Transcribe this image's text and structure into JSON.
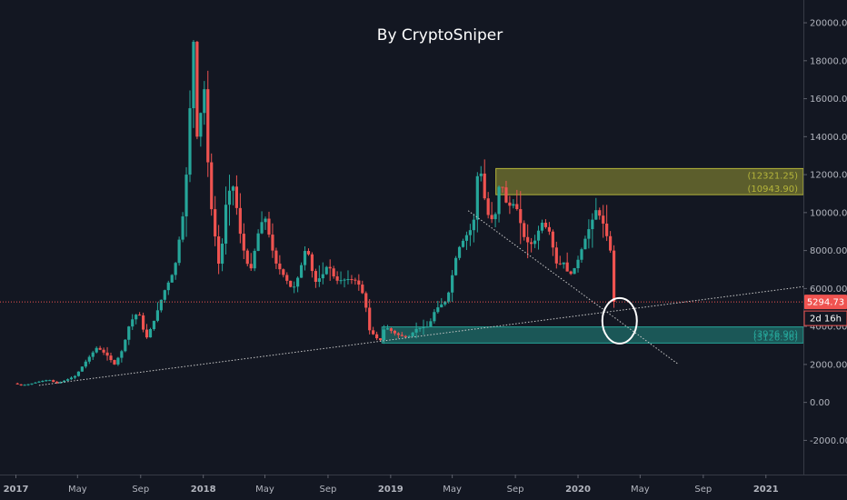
{
  "chart_data": {
    "type": "candlestick",
    "title": "By CryptoSniper",
    "y_axis": {
      "ticks": [
        20000,
        18000,
        16000,
        14000,
        12000,
        10000,
        8000,
        6000,
        4000,
        2000,
        0,
        -2000
      ],
      "tick_labels": [
        "20000.00",
        "18000.00",
        "16000.00",
        "14000.00",
        "12000.00",
        "10000.00",
        "8000.00",
        "6000.00",
        "4000.00",
        "2000.00",
        "0.00",
        "-2000.00"
      ],
      "range": [
        -3800,
        21200
      ],
      "position": "right"
    },
    "x_axis": {
      "range": [
        "2016-12-01",
        "2021-03-15"
      ],
      "ticks": [
        {
          "date": "2017-01-01",
          "label": "2017",
          "bold": true
        },
        {
          "date": "2017-05-01",
          "label": "May",
          "bold": false
        },
        {
          "date": "2017-09-01",
          "label": "Sep",
          "bold": false
        },
        {
          "date": "2018-01-01",
          "label": "2018",
          "bold": true
        },
        {
          "date": "2018-05-01",
          "label": "May",
          "bold": false
        },
        {
          "date": "2018-09-01",
          "label": "Sep",
          "bold": false
        },
        {
          "date": "2019-01-01",
          "label": "2019",
          "bold": true
        },
        {
          "date": "2019-05-01",
          "label": "May",
          "bold": false
        },
        {
          "date": "2019-09-01",
          "label": "Sep",
          "bold": false
        },
        {
          "date": "2020-01-01",
          "label": "2020",
          "bold": true
        },
        {
          "date": "2020-05-01",
          "label": "May",
          "bold": false
        },
        {
          "date": "2020-09-01",
          "label": "Sep",
          "bold": false
        },
        {
          "date": "2021-01-01",
          "label": "2021",
          "bold": true
        }
      ]
    },
    "price_path": [
      [
        "2017-01-01",
        1000
      ],
      [
        "2017-01-15",
        900
      ],
      [
        "2017-02-01",
        970
      ],
      [
        "2017-02-20",
        1100
      ],
      [
        "2017-03-10",
        1200
      ],
      [
        "2017-03-25",
        1000
      ],
      [
        "2017-04-10",
        1150
      ],
      [
        "2017-05-01",
        1400
      ],
      [
        "2017-05-25",
        2300
      ],
      [
        "2017-06-12",
        2900
      ],
      [
        "2017-07-01",
        2500
      ],
      [
        "2017-07-16",
        2000
      ],
      [
        "2017-08-01",
        2800
      ],
      [
        "2017-08-15",
        4200
      ],
      [
        "2017-09-01",
        4800
      ],
      [
        "2017-09-15",
        3300
      ],
      [
        "2017-10-01",
        4300
      ],
      [
        "2017-10-20",
        5800
      ],
      [
        "2017-11-10",
        7000
      ],
      [
        "2017-11-30",
        10500
      ],
      [
        "2017-12-10",
        15500
      ],
      [
        "2017-12-17",
        19000
      ],
      [
        "2017-12-24",
        14000
      ],
      [
        "2018-01-07",
        16500
      ],
      [
        "2018-01-17",
        11000
      ],
      [
        "2018-02-06",
        6900
      ],
      [
        "2018-02-20",
        11000
      ],
      [
        "2018-03-05",
        11400
      ],
      [
        "2018-03-20",
        8500
      ],
      [
        "2018-04-06",
        6800
      ],
      [
        "2018-04-25",
        9300
      ],
      [
        "2018-05-05",
        9800
      ],
      [
        "2018-05-25",
        7400
      ],
      [
        "2018-06-15",
        6500
      ],
      [
        "2018-06-28",
        5900
      ],
      [
        "2018-07-10",
        6700
      ],
      [
        "2018-07-25",
        8300
      ],
      [
        "2018-08-10",
        6300
      ],
      [
        "2018-08-25",
        6700
      ],
      [
        "2018-09-05",
        7300
      ],
      [
        "2018-09-20",
        6400
      ],
      [
        "2018-10-15",
        6500
      ],
      [
        "2018-11-01",
        6400
      ],
      [
        "2018-11-15",
        5500
      ],
      [
        "2018-11-25",
        3800
      ],
      [
        "2018-12-15",
        3200
      ],
      [
        "2018-12-25",
        4000
      ],
      [
        "2019-01-15",
        3600
      ],
      [
        "2019-02-07",
        3400
      ],
      [
        "2019-02-25",
        3900
      ],
      [
        "2019-03-20",
        4000
      ],
      [
        "2019-04-02",
        4900
      ],
      [
        "2019-04-25",
        5400
      ],
      [
        "2019-05-15",
        8000
      ],
      [
        "2019-05-30",
        8700
      ],
      [
        "2019-06-15",
        9300
      ],
      [
        "2019-06-26",
        12900
      ],
      [
        "2019-07-05",
        11000
      ],
      [
        "2019-07-17",
        9500
      ],
      [
        "2019-07-30",
        10000
      ],
      [
        "2019-08-06",
        11900
      ],
      [
        "2019-08-20",
        10300
      ],
      [
        "2019-09-05",
        10500
      ],
      [
        "2019-09-24",
        8500
      ],
      [
        "2019-10-10",
        8300
      ],
      [
        "2019-10-26",
        9500
      ],
      [
        "2019-11-10",
        9000
      ],
      [
        "2019-11-25",
        7200
      ],
      [
        "2019-12-10",
        7400
      ],
      [
        "2019-12-18",
        6600
      ],
      [
        "2020-01-01",
        7200
      ],
      [
        "2020-01-20",
        8700
      ],
      [
        "2020-02-10",
        10200
      ],
      [
        "2020-02-25",
        9300
      ],
      [
        "2020-03-08",
        8000
      ],
      [
        "2020-03-12",
        5300
      ]
    ],
    "annotations": {
      "resistance_zone": {
        "top": 12321.25,
        "bottom": 10943.9,
        "start": "2019-07-25",
        "end": "2021-03-15",
        "top_label": "(12321.25)",
        "bottom_label": "(10943.90)",
        "color": "#b5b53a"
      },
      "support_zone": {
        "top": 3976.9,
        "bottom": 3126.36,
        "start": "2018-12-15",
        "end": "2021-03-15",
        "top_label": "(3976.90)",
        "bottom_label": "(3126.36)",
        "color": "#26a69a"
      },
      "long_trendline": {
        "from": [
          "2017-02-15",
          900
        ],
        "to": [
          "2021-03-15",
          6100
        ],
        "color": "#c8c8c8"
      },
      "downtrend_line": {
        "from": [
          "2019-06-01",
          10100
        ],
        "to": [
          "2020-07-15",
          2000
        ],
        "color": "#c8c8c8"
      },
      "current_price": {
        "value": 5294.73,
        "label": "5294.73",
        "countdown": "2d 16h",
        "color": "#ef5350"
      },
      "highlight_circle": {
        "center": [
          "2020-03-22",
          4300
        ]
      }
    },
    "up_color": "#26a69a",
    "down_color": "#ef5350",
    "background": "#131722",
    "grid": false
  }
}
